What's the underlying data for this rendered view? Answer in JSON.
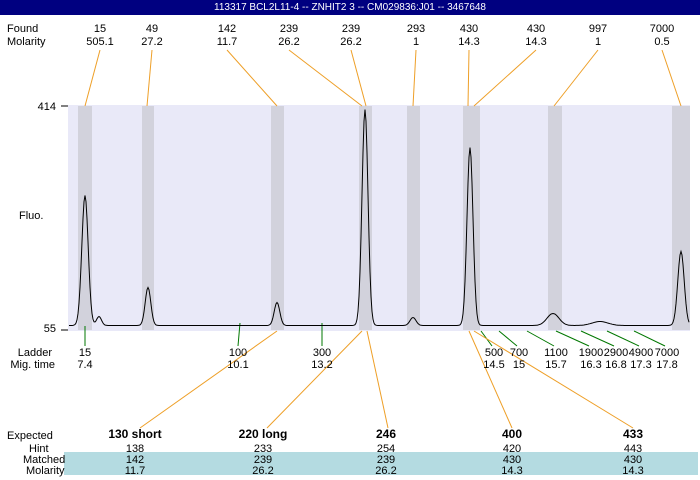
{
  "window": {
    "title": "113317 BCL2L11-4 -- ZNHIT2 3 -- CM029836:J01 -- 3467648"
  },
  "axis_labels": {
    "found": "Found",
    "molarity": "Molarity",
    "fluo": "Fluo.",
    "y_max": "414",
    "y_min": "55",
    "ladder": "Ladder",
    "mig_time": "Mig. time"
  },
  "expected_table": {
    "row_labels": {
      "expected": "Expected",
      "hint": "Hint",
      "matched": "Matched",
      "molarity": "Molarity"
    },
    "columns": [
      {
        "expected": "130 short",
        "hint": "138",
        "matched": "142",
        "molarity": "11.7"
      },
      {
        "expected": "220 long",
        "hint": "233",
        "matched": "239",
        "molarity": "26.2"
      },
      {
        "expected": "246",
        "hint": "254",
        "matched": "239",
        "molarity": "26.2"
      },
      {
        "expected": "400",
        "hint": "420",
        "matched": "430",
        "molarity": "14.3"
      },
      {
        "expected": "433",
        "hint": "443",
        "matched": "430",
        "molarity": "14.3"
      }
    ]
  },
  "colors": {
    "titlebar": "#000080",
    "plot_background": "#e9e9f8",
    "marker_band": "#d2d2dc",
    "connector_orange": "#ee9f27",
    "ladder_green": "#007700",
    "matched_row_background": "#b4dbe1",
    "trace": "#000000"
  },
  "chart_data": {
    "type": "line",
    "ylabel": "Fluo.",
    "ylim": [
      55,
      414
    ],
    "found_peaks": [
      {
        "size": "15",
        "molarity": "505.1"
      },
      {
        "size": "49",
        "molarity": "27.2"
      },
      {
        "size": "142",
        "molarity": "11.7"
      },
      {
        "size": "239",
        "molarity": "26.2"
      },
      {
        "size": "239",
        "molarity": "26.2"
      },
      {
        "size": "293",
        "molarity": "1"
      },
      {
        "size": "430",
        "molarity": "14.3"
      },
      {
        "size": "430",
        "molarity": "14.3"
      },
      {
        "size": "997",
        "molarity": "1"
      },
      {
        "size": "7000",
        "molarity": "0.5"
      }
    ],
    "ladder_points": [
      {
        "size": "15",
        "mig_time": "7.4"
      },
      {
        "size": "100",
        "mig_time": "10.1"
      },
      {
        "size": "300",
        "mig_time": "13.2"
      },
      {
        "size": "500",
        "mig_time": "14.5"
      },
      {
        "size": "700",
        "mig_time": "15"
      },
      {
        "size": "1100",
        "mig_time": "15.7"
      },
      {
        "size": "1900",
        "mig_time": "16.3"
      },
      {
        "size": "2900",
        "mig_time": "16.8"
      },
      {
        "size": "4900",
        "mig_time": "17.3"
      },
      {
        "size": "7000",
        "mig_time": "17.8"
      }
    ]
  }
}
